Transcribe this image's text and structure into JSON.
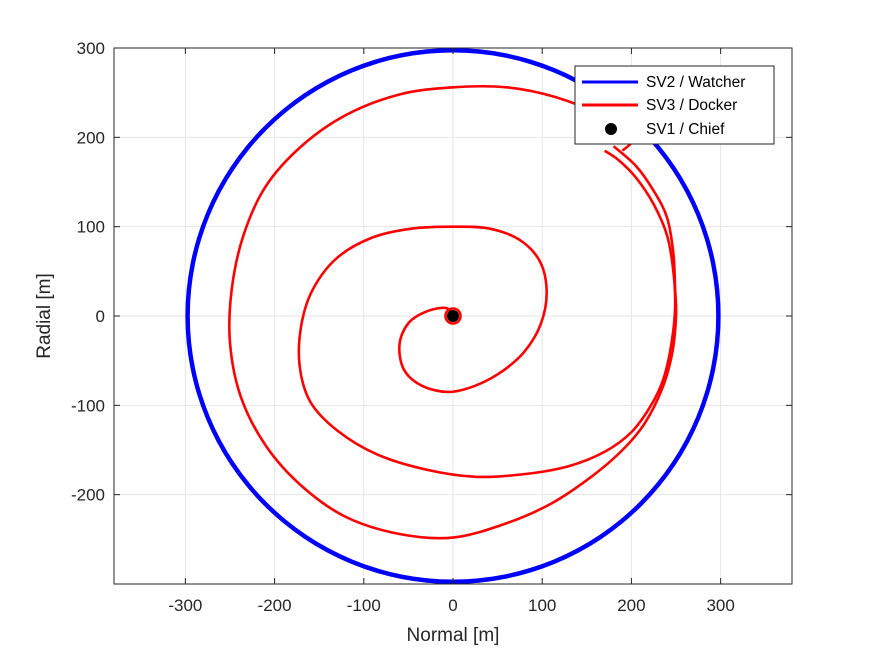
{
  "chart_data": {
    "type": "line",
    "title": "",
    "xlabel": "Normal [m]",
    "ylabel": "Radial [m]",
    "xlim": [
      -380,
      380
    ],
    "ylim": [
      -300,
      300
    ],
    "xticks": [
      -300,
      -200,
      -100,
      0,
      100,
      200,
      300
    ],
    "yticks": [
      -200,
      -100,
      0,
      100,
      200,
      300
    ],
    "xtick_labels": [
      "-300",
      "-200",
      "-100",
      "0",
      "100",
      "200",
      "300"
    ],
    "ytick_labels": [
      "-200",
      "-100",
      "0",
      "100",
      "200",
      "300"
    ],
    "grid": true,
    "legend_position": "top-right",
    "series": [
      {
        "name": "SV2 / Watcher",
        "color": "#0000ff",
        "style": "thick-circle",
        "center": [
          0,
          0
        ],
        "radius_outer": 300,
        "radius_inner": 295,
        "points": [
          [
            300,
            0
          ],
          [
            212,
            212
          ],
          [
            0,
            300
          ],
          [
            -212,
            212
          ],
          [
            -300,
            0
          ],
          [
            -212,
            -212
          ],
          [
            0,
            -300
          ],
          [
            212,
            -212
          ]
        ]
      },
      {
        "name": "SV3 / Docker",
        "color": "#ff0000",
        "style": "line",
        "points": [
          [
            170,
            185
          ],
          [
            185,
            175
          ],
          [
            205,
            155
          ],
          [
            225,
            125
          ],
          [
            240,
            90
          ],
          [
            247,
            50
          ],
          [
            249,
            10
          ],
          [
            245,
            -30
          ],
          [
            236,
            -70
          ],
          [
            222,
            -100
          ],
          [
            200,
            -130
          ],
          [
            170,
            -152
          ],
          [
            130,
            -168
          ],
          [
            80,
            -177
          ],
          [
            25,
            -180
          ],
          [
            -30,
            -172
          ],
          [
            -85,
            -155
          ],
          [
            -130,
            -128
          ],
          [
            -160,
            -96
          ],
          [
            -172,
            -55
          ],
          [
            -170,
            -10
          ],
          [
            -157,
            30
          ],
          [
            -130,
            65
          ],
          [
            -90,
            88
          ],
          [
            -45,
            98
          ],
          [
            0,
            100
          ],
          [
            40,
            98
          ],
          [
            75,
            85
          ],
          [
            98,
            60
          ],
          [
            105,
            25
          ],
          [
            98,
            -10
          ],
          [
            80,
            -40
          ],
          [
            55,
            -62
          ],
          [
            25,
            -78
          ],
          [
            -5,
            -85
          ],
          [
            -35,
            -78
          ],
          [
            -55,
            -60
          ],
          [
            -60,
            -32
          ],
          [
            -50,
            -8
          ],
          [
            -30,
            5
          ],
          [
            -8,
            9
          ],
          [
            0,
            0
          ]
        ],
        "outer_points": [
          [
            180,
            190
          ],
          [
            205,
            168
          ],
          [
            225,
            140
          ],
          [
            240,
            110
          ],
          [
            247,
            70
          ],
          [
            249,
            30
          ],
          [
            250,
            0
          ],
          [
            246,
            -40
          ],
          [
            235,
            -80
          ],
          [
            215,
            -120
          ],
          [
            190,
            -150
          ],
          [
            155,
            -180
          ],
          [
            110,
            -210
          ],
          [
            60,
            -232
          ],
          [
            0,
            -248
          ],
          [
            -60,
            -244
          ],
          [
            -120,
            -225
          ],
          [
            -170,
            -190
          ],
          [
            -210,
            -145
          ],
          [
            -238,
            -90
          ],
          [
            -250,
            -30
          ],
          [
            -248,
            30
          ],
          [
            -235,
            90
          ],
          [
            -210,
            145
          ],
          [
            -170,
            190
          ],
          [
            -120,
            225
          ],
          [
            -60,
            248
          ],
          [
            0,
            256
          ],
          [
            60,
            256
          ],
          [
            115,
            245
          ],
          [
            165,
            225
          ],
          [
            200,
            200
          ],
          [
            190,
            185
          ]
        ]
      },
      {
        "name": "SV1 / Chief",
        "color": "#000000",
        "style": "marker",
        "points": [
          [
            0,
            0
          ]
        ]
      }
    ]
  }
}
